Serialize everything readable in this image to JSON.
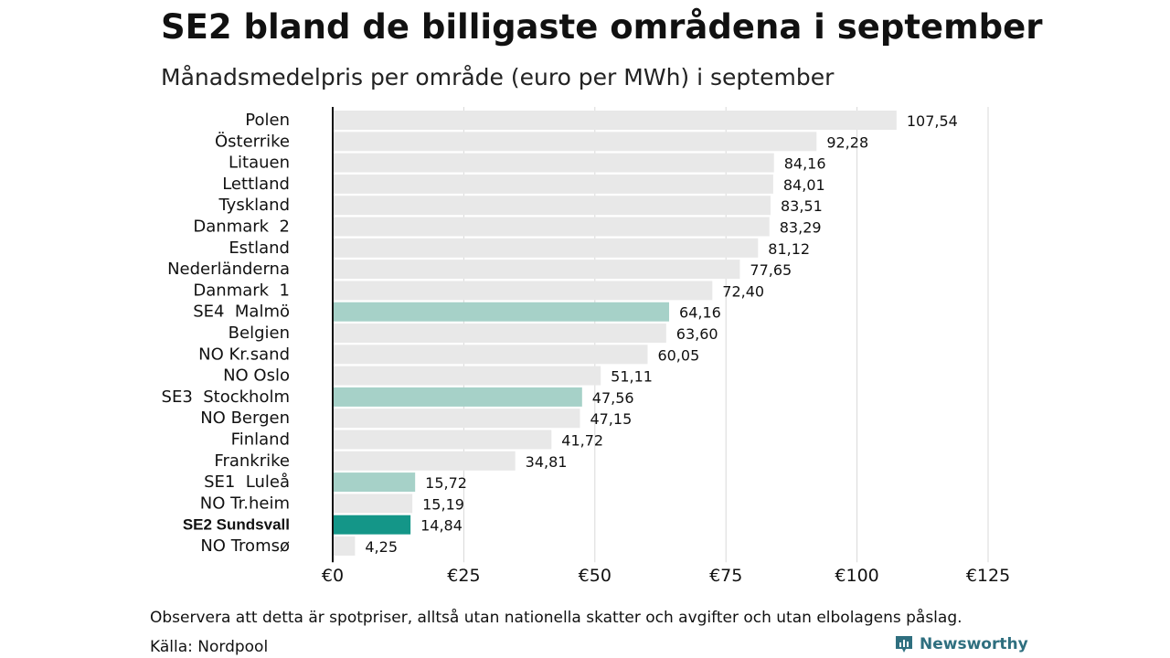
{
  "header": {
    "title": "SE2 bland de billigaste områdena i september",
    "subtitle": "Månadsmedelpris per område (euro per MWh) i september"
  },
  "chart_data": {
    "type": "bar",
    "orientation": "horizontal",
    "title": "SE2 bland de billigaste områdena i september",
    "subtitle": "Månadsmedelpris per område (euro per MWh) i september",
    "categories": [
      "Polen",
      "Österrike",
      "Litauen",
      "Lettland",
      "Tyskland",
      "Danmark  2",
      "Estland",
      "Nederländerna",
      "Danmark  1",
      "SE4  Malmö",
      "Belgien",
      "NO Kr.sand",
      "NO Oslo",
      "SE3  Stockholm",
      "NO Bergen",
      "Finland",
      "Frankrike",
      "SE1  Luleå",
      "NO Tr.heim",
      "SE2 Sundsvall",
      "NO Tromsø"
    ],
    "values": [
      107.54,
      92.28,
      84.16,
      84.01,
      83.51,
      83.29,
      81.12,
      77.65,
      72.4,
      64.16,
      63.6,
      60.05,
      51.11,
      47.56,
      47.15,
      41.72,
      34.81,
      15.72,
      15.19,
      14.84,
      4.25
    ],
    "value_labels": [
      "107,54",
      "92,28",
      "84,16",
      "84,01",
      "83,51",
      "83,29",
      "81,12",
      "77,65",
      "72,40",
      "64,16",
      "63,60",
      "60,05",
      "51,11",
      "47,56",
      "47,15",
      "41,72",
      "34,81",
      "15,72",
      "15,19",
      "14,84",
      "4,25"
    ],
    "highlight": [
      "none",
      "none",
      "none",
      "none",
      "none",
      "none",
      "none",
      "none",
      "none",
      "light",
      "none",
      "none",
      "none",
      "light",
      "none",
      "none",
      "none",
      "light",
      "none",
      "strong",
      "none"
    ],
    "bold_category": "SE2 Sundsvall",
    "xlim": [
      0,
      125
    ],
    "xticks": [
      0,
      25,
      50,
      75,
      100,
      125
    ],
    "xtick_labels": [
      "€0",
      "€25",
      "€50",
      "€75",
      "€100",
      "€125"
    ],
    "xlabel": "",
    "ylabel": "",
    "grid": "vertical",
    "colors": {
      "default": "#e8e8e8",
      "light": "#a6d1c8",
      "strong": "#149688",
      "grid": "#d9d9d9",
      "axis": "#111111"
    }
  },
  "footer": {
    "note": "Observera att detta är spotpriser, alltså utan nationella skatter och avgifter och utan elbolagens påslag.",
    "source": "Källa: Nordpool",
    "brand": "Newsworthy",
    "brand_icon": "newsworthy-logo-icon",
    "brand_color": "#2f6f7f"
  }
}
